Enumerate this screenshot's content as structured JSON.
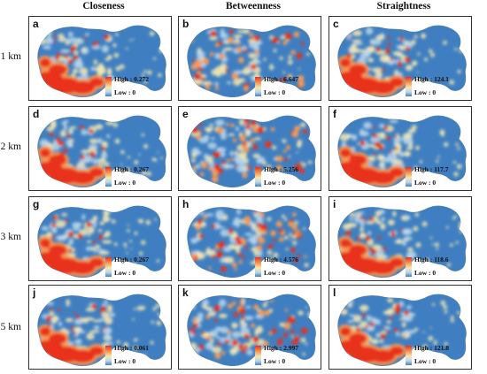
{
  "columns": [
    "Closeness",
    "Betweenness",
    "Straightness"
  ],
  "rows": [
    "1 km",
    "2 km",
    "3 km",
    "5 km"
  ],
  "panels": [
    {
      "letter": "a",
      "metric": "closeness",
      "high": "High : 0.272",
      "low": "Low : 0"
    },
    {
      "letter": "b",
      "metric": "betweenness",
      "high": "High : 6.647",
      "low": "Low : 0"
    },
    {
      "letter": "c",
      "metric": "straightness",
      "high": "High : 124.1",
      "low": "Low : 0"
    },
    {
      "letter": "d",
      "metric": "closeness",
      "high": "High : 0.267",
      "low": "Low : 0"
    },
    {
      "letter": "e",
      "metric": "betweenness",
      "high": "High : 5.256",
      "low": "Low : 0"
    },
    {
      "letter": "f",
      "metric": "straightness",
      "high": "High : 117.7",
      "low": "Low : 0"
    },
    {
      "letter": "g",
      "metric": "closeness",
      "high": "High : 0.267",
      "low": "Low : 0"
    },
    {
      "letter": "h",
      "metric": "betweenness",
      "high": "High : 4.576",
      "low": "Low : 0"
    },
    {
      "letter": "i",
      "metric": "straightness",
      "high": "High : 118.6",
      "low": "Low : 0"
    },
    {
      "letter": "j",
      "metric": "closeness",
      "high": "High : 0.061",
      "low": "Low : 0"
    },
    {
      "letter": "k",
      "metric": "betweenness",
      "high": "High : 2.997",
      "low": "Low : 0"
    },
    {
      "letter": "l",
      "metric": "straightness",
      "high": "High : 121.8",
      "low": "Low : 0"
    }
  ],
  "colors": {
    "high": "#e8301f",
    "mid_high": "#f59a56",
    "mid": "#f7e8b0",
    "mid_low": "#b9d6ea",
    "low": "#3f7fc1"
  }
}
